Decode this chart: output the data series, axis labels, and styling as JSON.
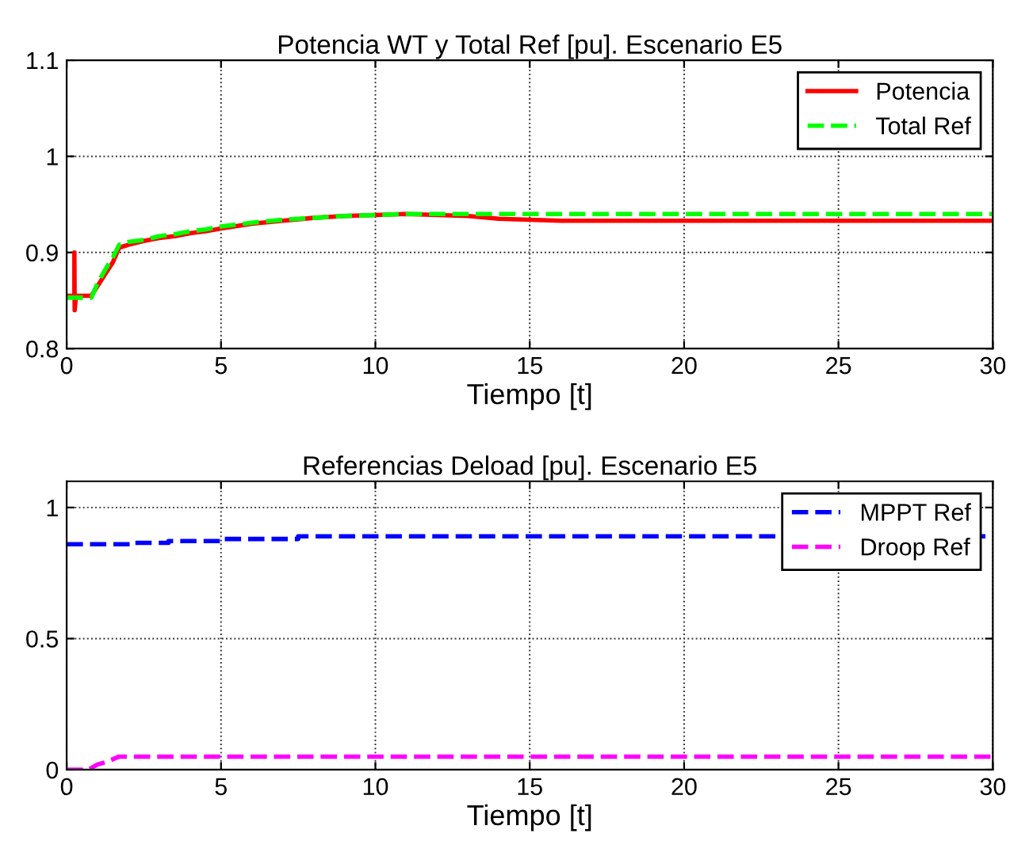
{
  "chart_data": [
    {
      "type": "line",
      "title": "Potencia WT y Total Ref [pu]. Escenario E5",
      "xlabel": "Tiempo [t]",
      "xlim": [
        0,
        30
      ],
      "xticks": [
        0,
        5,
        10,
        15,
        20,
        25,
        30
      ],
      "ylim": [
        0.8,
        1.1
      ],
      "yticks": [
        0.8,
        0.9,
        1,
        1.1
      ],
      "grid": true,
      "legend": "top right",
      "series": [
        {
          "name": "Potencia",
          "color": "#ff0000",
          "line_style": "solid",
          "x": [
            0,
            0.25,
            0.25,
            0.26,
            0.3,
            0.8,
            1.0,
            1.3,
            1.5,
            1.7,
            2,
            2.5,
            3,
            3.5,
            4,
            4.5,
            5,
            6,
            7,
            8,
            9,
            10,
            11,
            12,
            13,
            14,
            16,
            30
          ],
          "values": [
            0.855,
            0.855,
            0.9,
            0.84,
            0.855,
            0.855,
            0.865,
            0.88,
            0.89,
            0.905,
            0.908,
            0.912,
            0.915,
            0.917,
            0.92,
            0.922,
            0.925,
            0.93,
            0.933,
            0.936,
            0.938,
            0.939,
            0.94,
            0.939,
            0.938,
            0.935,
            0.933,
            0.933
          ]
        },
        {
          "name": "Total Ref",
          "color": "#00ff00",
          "line_style": "dashed",
          "x": [
            0,
            0.8,
            1.0,
            1.3,
            1.5,
            1.7,
            2,
            2.5,
            3,
            3.5,
            4,
            4.5,
            5,
            6,
            7,
            8,
            9,
            10,
            11,
            12,
            13,
            14,
            16,
            30
          ],
          "values": [
            0.853,
            0.853,
            0.868,
            0.885,
            0.895,
            0.908,
            0.911,
            0.913,
            0.917,
            0.919,
            0.922,
            0.924,
            0.927,
            0.931,
            0.934,
            0.936,
            0.938,
            0.939,
            0.94,
            0.94,
            0.94,
            0.94,
            0.94,
            0.94
          ]
        }
      ]
    },
    {
      "type": "line",
      "title": "Referencias Deload [pu]. Escenario E5",
      "xlabel": "Tiempo [t]",
      "xlim": [
        0,
        30
      ],
      "xticks": [
        0,
        5,
        10,
        15,
        20,
        25,
        30
      ],
      "ylim": [
        0,
        1.1
      ],
      "yticks": [
        0,
        0.5,
        1
      ],
      "grid": true,
      "legend": "top right",
      "series": [
        {
          "name": "MPPT Ref",
          "color": "#0000ff",
          "line_style": "dashed",
          "x": [
            0,
            2.2,
            2.2,
            3.3,
            3.3,
            5,
            5,
            7.5,
            7.5,
            30
          ],
          "values": [
            0.86,
            0.86,
            0.865,
            0.865,
            0.872,
            0.872,
            0.88,
            0.88,
            0.89,
            0.89
          ]
        },
        {
          "name": "Droop Ref",
          "color": "#ff00ff",
          "line_style": "dashed",
          "x": [
            0,
            0.7,
            1.0,
            1.3,
            1.7,
            30
          ],
          "values": [
            0,
            0,
            0.02,
            0.03,
            0.05,
            0.05
          ]
        }
      ]
    }
  ]
}
